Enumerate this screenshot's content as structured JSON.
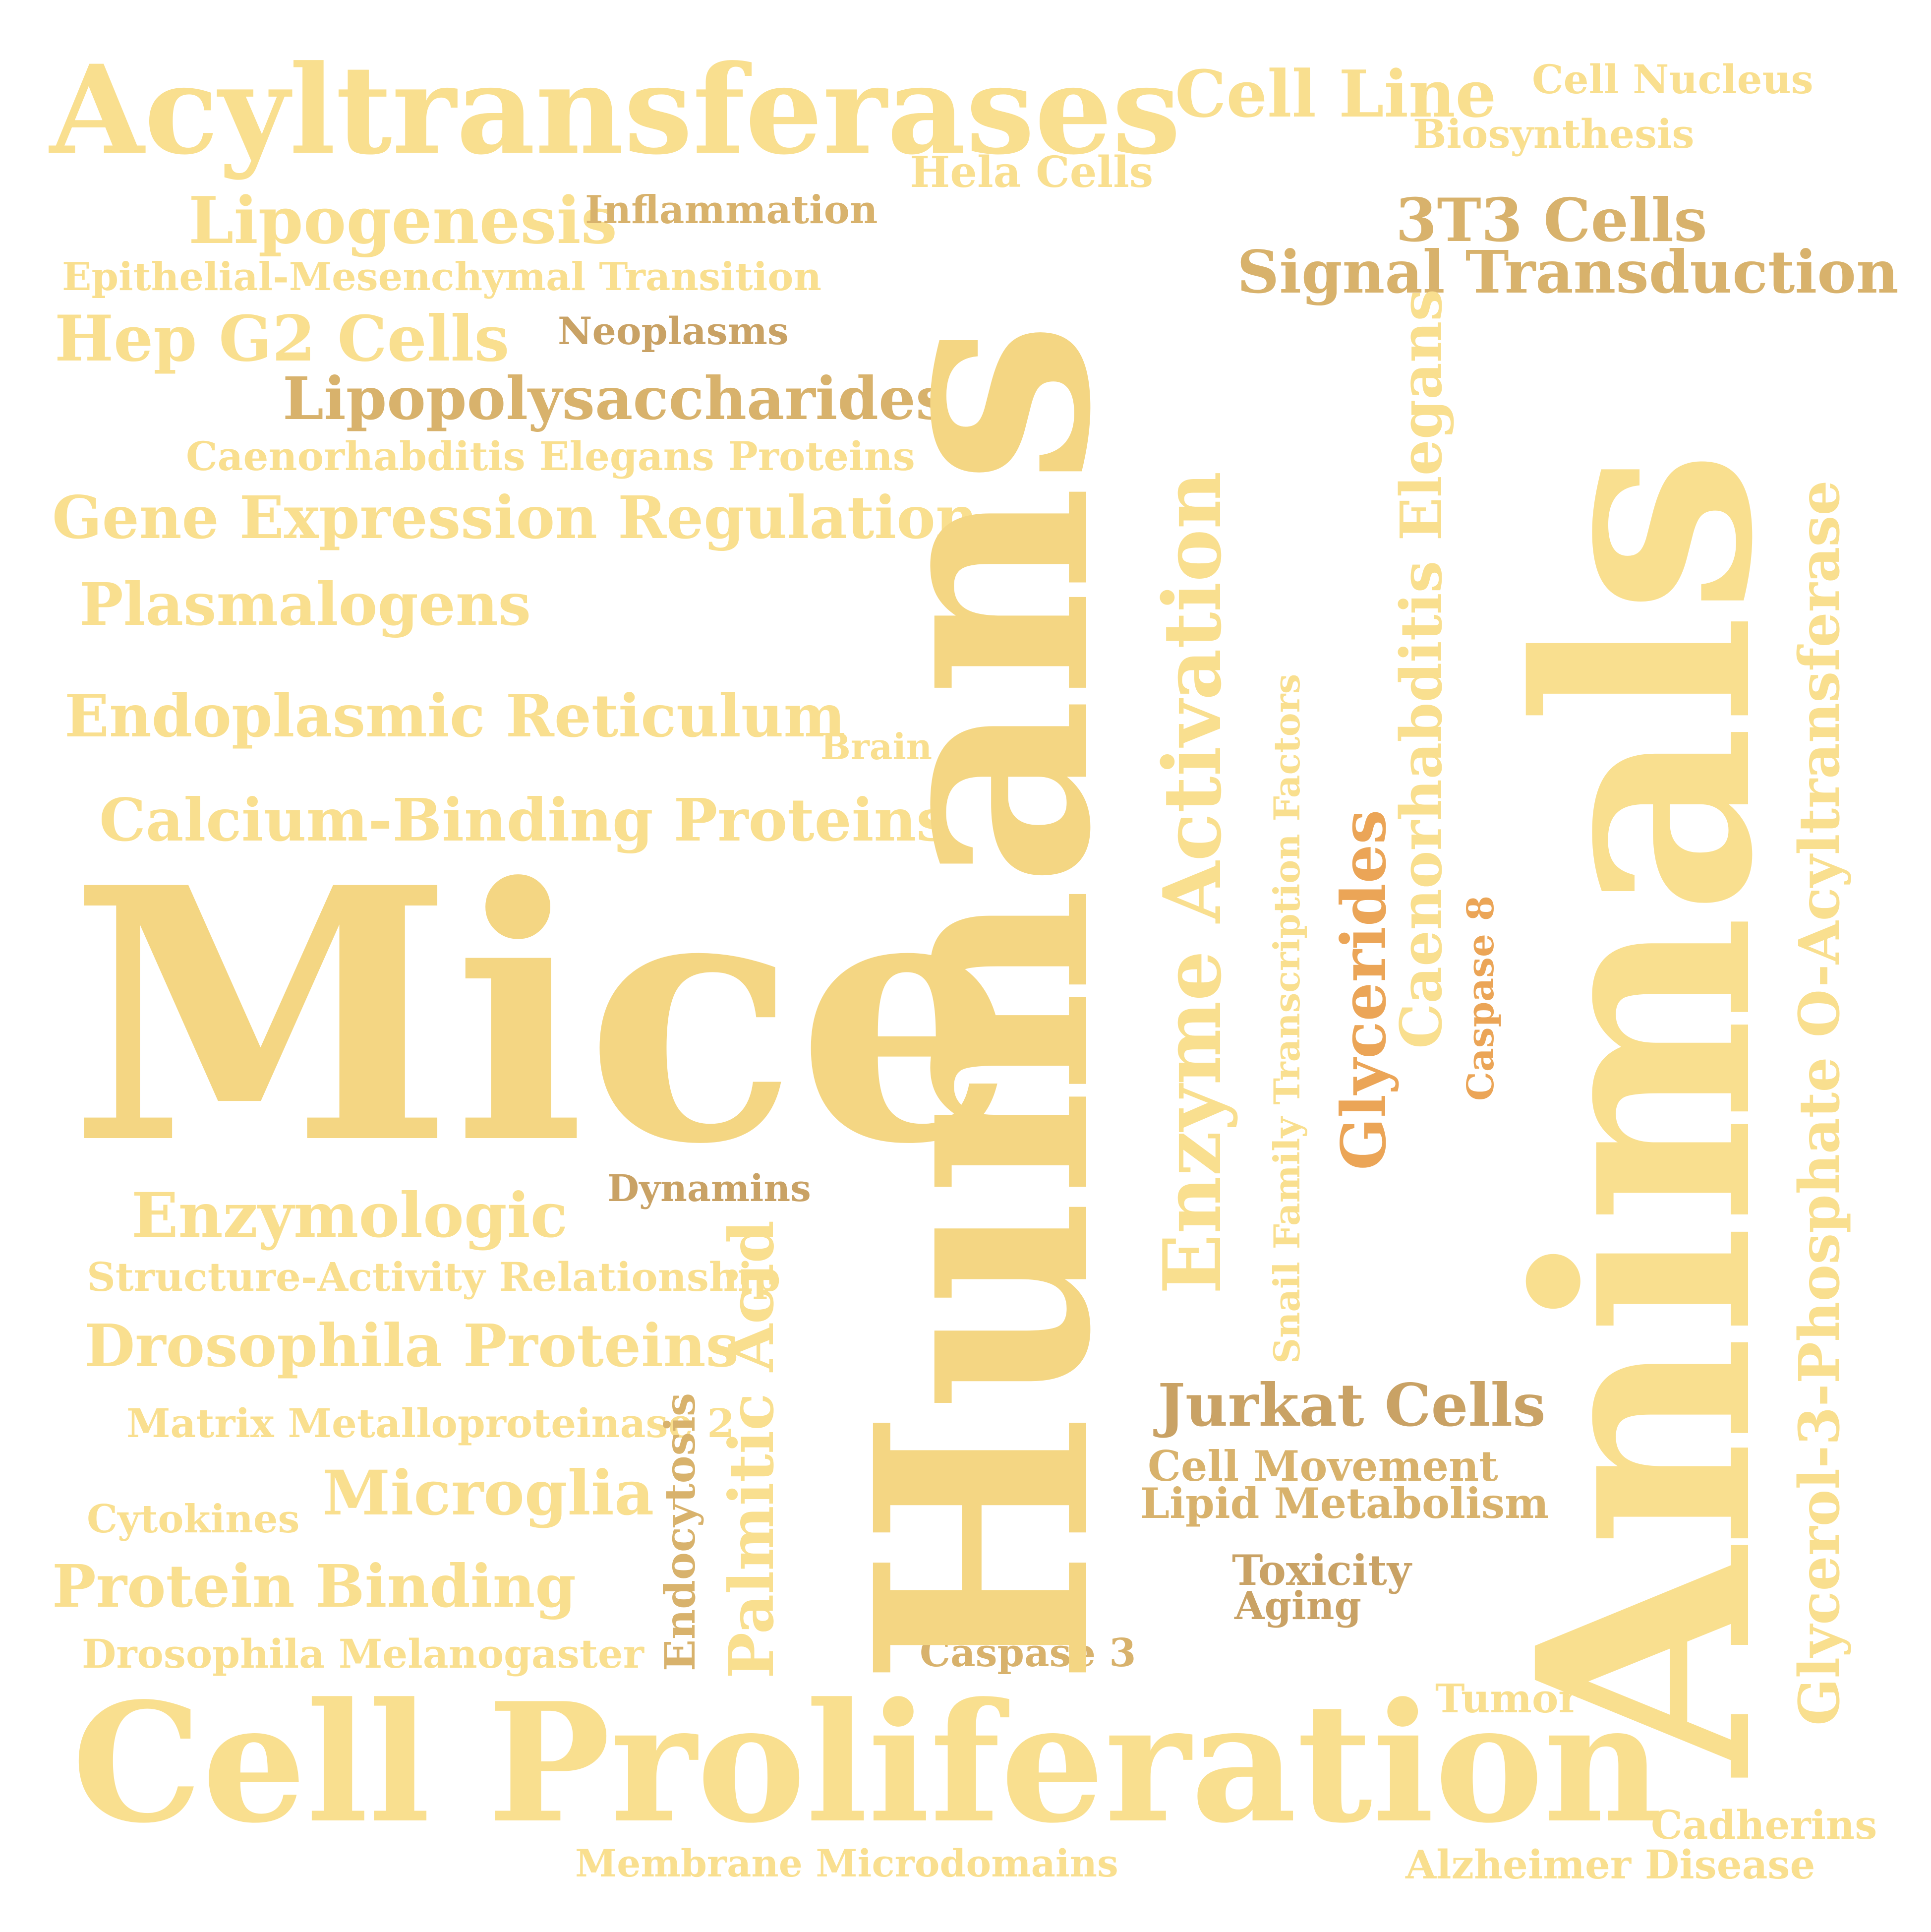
{
  "palette": {
    "pale": "#f9df8f",
    "gold": "#f4d683",
    "tan": "#d8b26c",
    "brown": "#c9a265",
    "orange": "#eba557",
    "background": "#ffffff"
  },
  "words": {
    "acyltransferases": "Acyltransferases",
    "cell_line": "Cell Line",
    "cell_nucleus": "Cell Nucleus",
    "biosynthesis": "Biosynthesis",
    "hela_cells": "Hela Cells",
    "lipogenesis": "Lipogenesis",
    "inflammation": "Inflammation",
    "t3t3_cells": "3T3 Cells",
    "signal_transduction": "Signal Transduction",
    "emt": "Epithelial-Mesenchymal Transition",
    "hep_g2_cells": "Hep G2 Cells",
    "neoplasms": "Neoplasms",
    "lipopolysaccharides": "Lipopolysaccharides",
    "c_elegans_proteins": "Caenorhabditis Elegans Proteins",
    "gene_expression_regulation": "Gene Expression Regulation",
    "plasmalogens": "Plasmalogens",
    "endoplasmic_reticulum": "Endoplasmic Reticulum",
    "brain": "Brain",
    "calcium_binding_proteins": "Calcium-Binding Proteins",
    "mice": "Mice",
    "dynamins": "Dynamins",
    "enzymologic": "Enzymologic",
    "structure_activity_relationship": "Structure-Activity Relationship",
    "drosophila_proteins": "Drosophila Proteins",
    "mmp2": "Matrix Metalloproteinase 2",
    "jurkat_cells": "Jurkat Cells",
    "cell_movement": "Cell Movement",
    "lipid_metabolism": "Lipid Metabolism",
    "microglia": "Microglia",
    "cytokines": "Cytokines",
    "toxicity": "Toxicity",
    "aging": "Aging",
    "protein_binding": "Protein Binding",
    "drosophila_melanogaster": "Drosophila Melanogaster",
    "caspase_3": "Caspase 3",
    "tumor": "Tumor",
    "cell_proliferation": "Cell Proliferation",
    "cadherins": "Cadherins",
    "membrane_microdomains": "Membrane Microdomains",
    "alzheimer_disease": "Alzheimer Disease",
    "humans": "Humans",
    "animals": "Animals",
    "enzyme_activation": "Enzyme Activation",
    "caenorhabditis_elegans": "Caenorhabditis Elegans",
    "glycerol_3_phosphate": "Glycerol-3-Phosphate O-Acyltransferase",
    "snail_family": "Snail Family Transcription Factors",
    "glycerides": "Glycerides",
    "caspase_8": "Caspase 8",
    "palmitic_acid": "Palmitic Acid",
    "endocytosis": "Endocytosis"
  }
}
